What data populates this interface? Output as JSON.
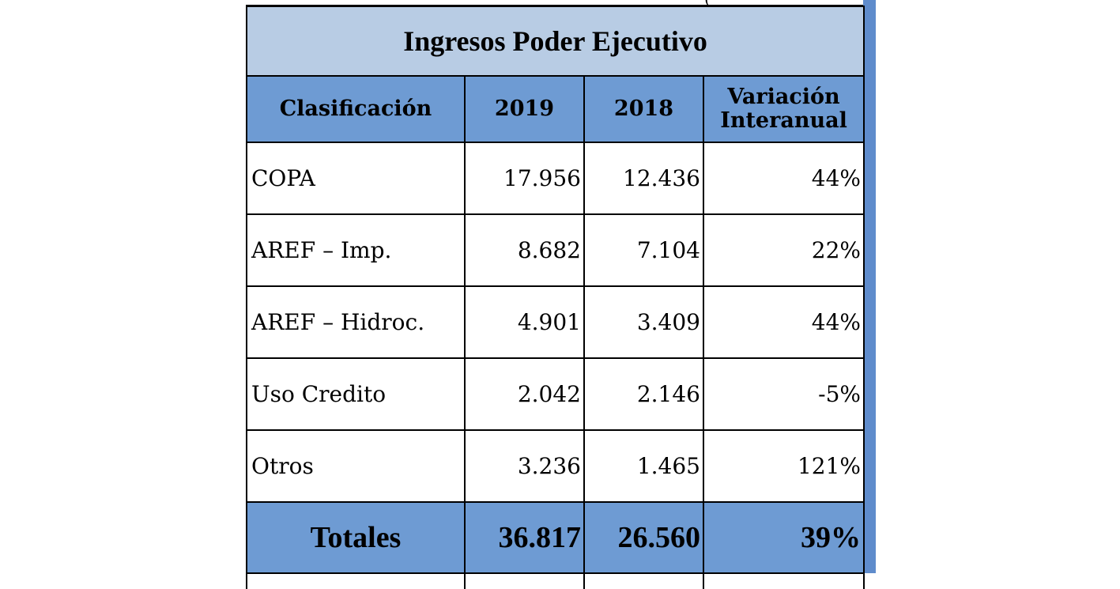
{
  "chart_data": {
    "type": "table",
    "title": "Ingresos Poder Ejecutivo",
    "columns": [
      "Clasificación",
      "2019",
      "2018",
      "Variación Interanual"
    ],
    "header_variation_lines": [
      "Variación",
      "Interanual"
    ],
    "rows": [
      {
        "label": "COPA",
        "v2019": "17.956",
        "v2018": "12.436",
        "variation": "44%"
      },
      {
        "label": "AREF – Imp.",
        "v2019": "8.682",
        "v2018": "7.104",
        "variation": "22%"
      },
      {
        "label": "AREF – Hidroc.",
        "v2019": "4.901",
        "v2018": "3.409",
        "variation": "44%"
      },
      {
        "label": "Uso Credito",
        "v2019": "2.042",
        "v2018": "2.146",
        "variation": "-5%"
      },
      {
        "label": "Otros",
        "v2019": "3.236",
        "v2018": "1.465",
        "variation": "121%"
      }
    ],
    "totals": {
      "label": "Totales",
      "v2019": "36.817",
      "v2018": "26.560",
      "variation": "39%"
    },
    "partial_text_top": "(",
    "colors": {
      "title_bg": "#b8cce4",
      "header_bg": "#6e9bd3",
      "accent_bar": "#5f8ccc"
    }
  }
}
